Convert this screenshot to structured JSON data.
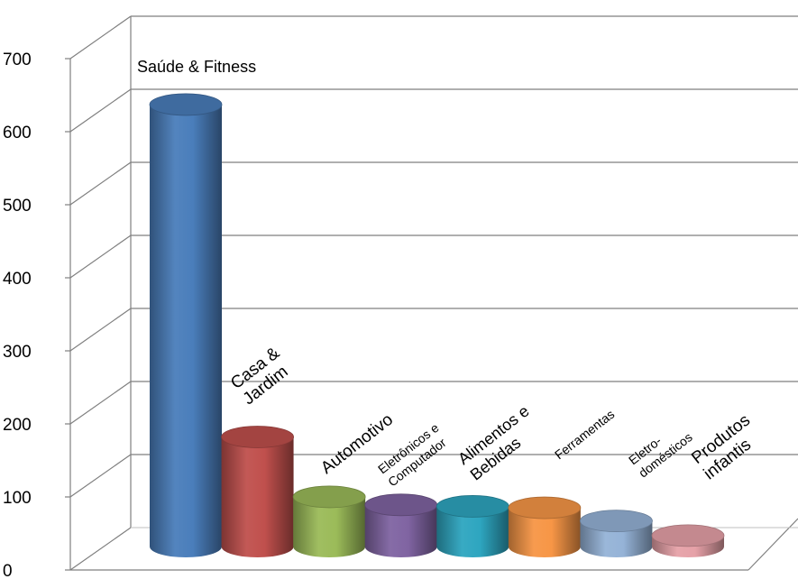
{
  "chart_data": {
    "type": "bar",
    "style": "3d-cylinder",
    "grid": true,
    "legend": "none",
    "ylim": [
      0,
      700
    ],
    "yticks": [
      0,
      100,
      200,
      300,
      400,
      500,
      600,
      700
    ],
    "categories": [
      {
        "lines": [
          "Saúde & Fitness"
        ],
        "color": "#4a7ebb"
      },
      {
        "lines": [
          "Casa &",
          "Jardim"
        ],
        "color": "#c0504d"
      },
      {
        "lines": [
          "Automotivo"
        ],
        "color": "#9bbb59"
      },
      {
        "lines": [
          "Eletrônicos e",
          "Computador"
        ],
        "color": "#8064a2"
      },
      {
        "lines": [
          "Alimentos e",
          "Bebidas"
        ],
        "color": "#2ea6c0"
      },
      {
        "lines": [
          "Ferramentas"
        ],
        "color": "#f79646"
      },
      {
        "lines": [
          "Eletro-",
          "domésticos"
        ],
        "color": "#95b3d7"
      },
      {
        "lines": [
          "Produtos",
          "infantis"
        ],
        "color": "#e6a1a8"
      }
    ],
    "values": [
      605,
      150,
      68,
      57,
      55,
      53,
      35,
      15
    ]
  }
}
